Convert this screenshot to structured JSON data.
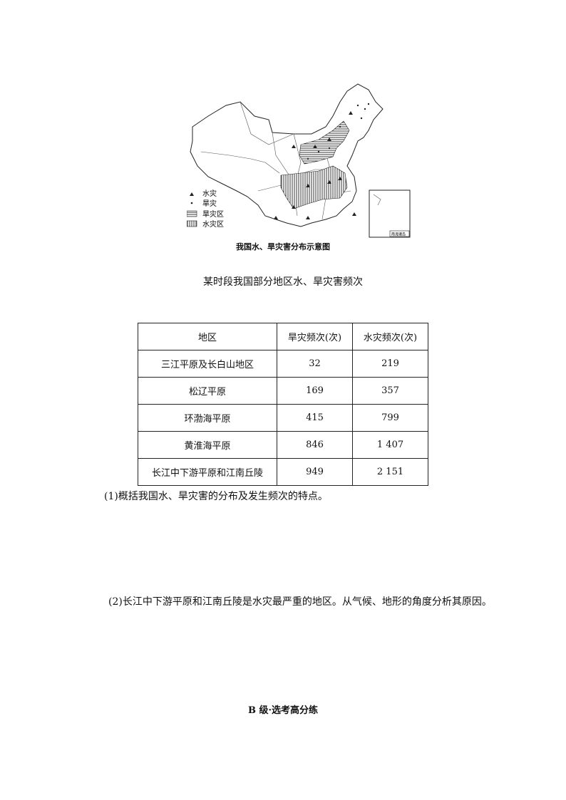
{
  "map": {
    "caption": "我国水、旱灾害分布示意图",
    "legend": [
      {
        "symbol": "triangle",
        "label": "水灾"
      },
      {
        "symbol": "dot",
        "label": "旱灾"
      },
      {
        "symbol": "horizontal-hatch",
        "label": "旱灾区"
      },
      {
        "symbol": "vertical-hatch",
        "label": "水灾区"
      }
    ],
    "inset_label": "南海诸岛"
  },
  "table": {
    "title": "某时段我国部分地区水、旱灾害频次",
    "headers": [
      "地区",
      "旱灾频次(次)",
      "水灾频次(次)"
    ],
    "rows": [
      [
        "三江平原及长白山地区",
        "32",
        "219"
      ],
      [
        "松辽平原",
        "169",
        "357"
      ],
      [
        "环渤海平原",
        "415",
        "799"
      ],
      [
        "黄淮海平原",
        "846",
        "1 407"
      ],
      [
        "长江中下游平原和江南丘陵",
        "949",
        "2 151"
      ]
    ]
  },
  "questions": [
    "(1)概括我国水、旱灾害的分布及发生频次的特点。",
    "(2)长江中下游平原和江南丘陵是水灾最严重的地区。从气候、地形的角度分析其原因。"
  ],
  "section_title": "B 级·选考高分练"
}
